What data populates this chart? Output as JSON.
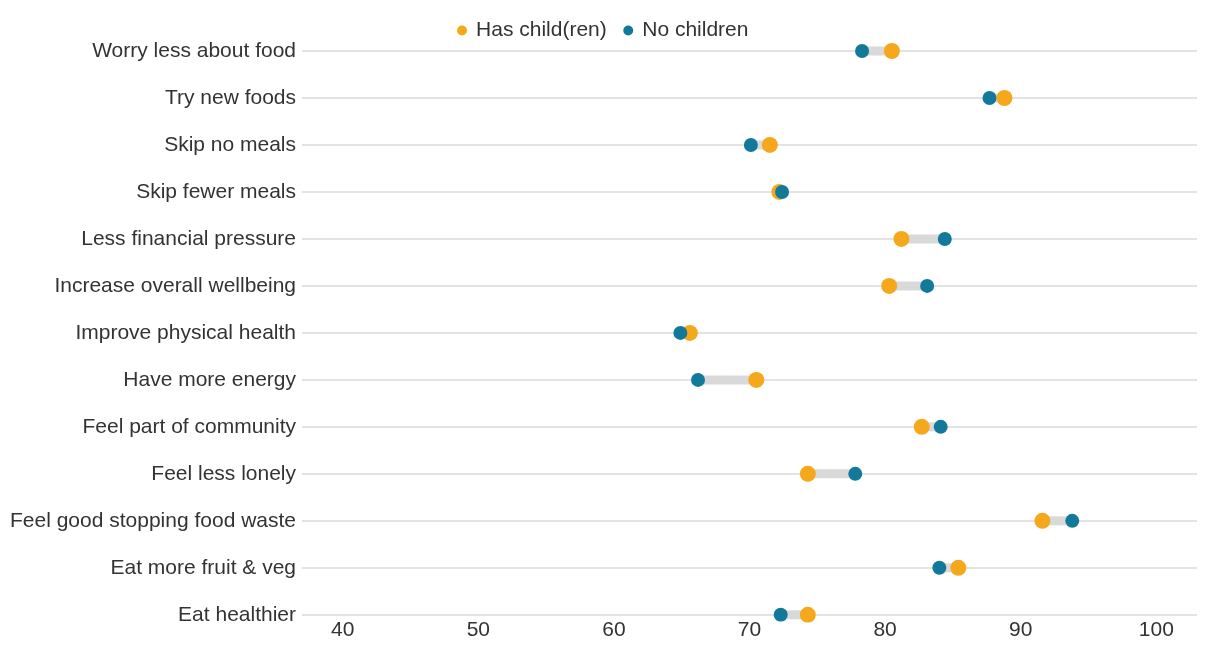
{
  "chart_data": {
    "type": "scatter",
    "orientation": "horizontal",
    "categories": [
      "Worry less about food",
      "Try new foods",
      "Skip no meals",
      "Skip fewer meals",
      "Less financial pressure",
      "Increase overall wellbeing",
      "Improve physical health",
      "Have more energy",
      "Feel part of community",
      "Feel less lonely",
      "Feel good stopping food waste",
      "Eat more fruit & veg",
      "Eat healthier"
    ],
    "series": [
      {
        "name": "Has child(ren)",
        "color": "#f5a81c",
        "values": [
          80.5,
          88.8,
          71.5,
          72.2,
          81.2,
          80.3,
          65.6,
          70.5,
          82.7,
          74.3,
          91.6,
          85.4,
          74.3
        ]
      },
      {
        "name": "No children",
        "color": "#12799b",
        "values": [
          78.3,
          87.7,
          70.1,
          72.4,
          84.4,
          83.1,
          64.9,
          66.2,
          84.1,
          77.8,
          93.8,
          84.0,
          72.3
        ]
      }
    ],
    "xlim": [
      37,
      103
    ],
    "xticks": [
      40,
      50,
      60,
      70,
      80,
      90,
      100
    ],
    "grid": "y",
    "legend": "top",
    "marker": "circle"
  }
}
